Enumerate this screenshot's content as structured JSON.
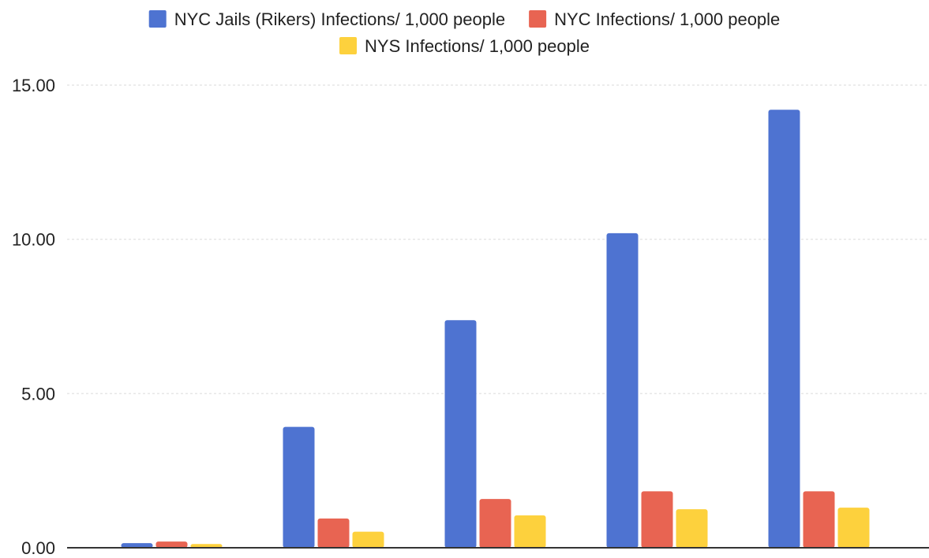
{
  "chart_data": {
    "type": "bar",
    "categories": [
      "",
      "",
      "",
      "",
      ""
    ],
    "series": [
      {
        "name": "NYC Jails (Rikers) Infections/ 1,000 people",
        "color": "#4e73d1",
        "values": [
          0.15,
          3.92,
          7.38,
          10.2,
          14.2
        ]
      },
      {
        "name": "NYC Infections/ 1,000 people",
        "color": "#e86452",
        "values": [
          0.2,
          0.95,
          1.58,
          1.83,
          1.83
        ]
      },
      {
        "name": "NYS Infections/ 1,000 people",
        "color": "#fdd13d",
        "values": [
          0.12,
          0.52,
          1.05,
          1.25,
          1.3
        ]
      }
    ],
    "ylim": [
      0,
      15
    ],
    "yticks": [
      0,
      5,
      10,
      15
    ],
    "ytick_labels": [
      "0.00",
      "5.00",
      "10.00",
      "15.00"
    ],
    "grid": true,
    "legend_position": "top-center",
    "title": "",
    "xlabel": "",
    "ylabel": ""
  }
}
